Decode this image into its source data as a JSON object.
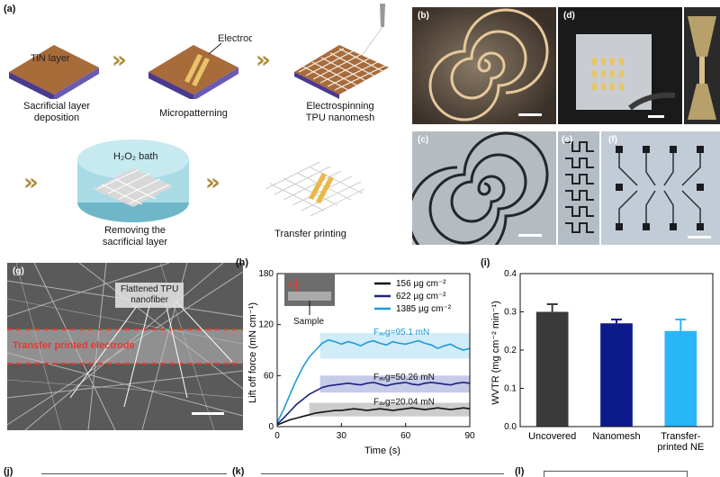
{
  "panel_a": {
    "label": "(a)",
    "steps": [
      {
        "name": "sacrificial-layer-deposition",
        "inner_label": "TiN layer",
        "caption": [
          "Sacrificial layer",
          "deposition"
        ]
      },
      {
        "name": "micropatterning",
        "inner_label": "Electrode",
        "caption": [
          "Micropatterning"
        ]
      },
      {
        "name": "electrospinning",
        "caption": [
          "Electrospinning",
          "TPU nanomesh"
        ]
      },
      {
        "name": "removing-sacrificial-layer",
        "inner_label": "H₂O₂ bath",
        "caption": [
          "Removing the",
          "sacrificial layer"
        ]
      },
      {
        "name": "transfer-printing",
        "caption": [
          "Transfer printing"
        ]
      }
    ],
    "arrow_glyph": "»"
  },
  "photo_labels": {
    "b": "(b)",
    "c": "(c)",
    "d": "(d)",
    "e": "(e)",
    "f": "(f)",
    "g": "(g)"
  },
  "panel_g": {
    "callout": [
      "Flattened TPU",
      "nanofiber"
    ],
    "electrode_label": "Transfer printed electrode"
  },
  "chart_data": [
    {
      "type": "line",
      "panel": "(h)",
      "xlabel": "Time (s)",
      "ylabel": "Lift off force (mN cm⁻¹)",
      "xlim": [
        0,
        90
      ],
      "ylim": [
        0,
        180
      ],
      "xticks": [
        0,
        30,
        60,
        90
      ],
      "yticks": [
        0,
        60,
        120,
        180
      ],
      "inset_labels": {
        "force": "F↑",
        "sample": "Sample"
      },
      "series": [
        {
          "name": "156 µg cm⁻²",
          "color": "#111111",
          "x": [
            0,
            3,
            6,
            9,
            12,
            15,
            18,
            21,
            24,
            27,
            30,
            33,
            36,
            39,
            42,
            45,
            48,
            51,
            54,
            57,
            60,
            63,
            66,
            69,
            72,
            75,
            78,
            81,
            84,
            87,
            90
          ],
          "y": [
            2,
            5,
            8,
            10,
            12,
            14,
            16,
            17,
            18,
            19,
            19,
            20,
            21,
            20,
            19,
            20,
            21,
            20,
            19,
            20,
            21,
            22,
            21,
            20,
            21,
            22,
            21,
            20,
            21,
            22,
            21
          ],
          "annotation": "Fₐᵥg=20.04 mN"
        },
        {
          "name": "622 µg cm⁻²",
          "color": "#1a237e",
          "x": [
            0,
            3,
            6,
            9,
            12,
            15,
            18,
            21,
            24,
            27,
            30,
            33,
            36,
            39,
            42,
            45,
            48,
            51,
            54,
            57,
            60,
            63,
            66,
            69,
            72,
            75,
            78,
            81,
            84,
            87,
            90
          ],
          "y": [
            3,
            10,
            18,
            26,
            32,
            38,
            42,
            46,
            48,
            49,
            50,
            51,
            50,
            49,
            51,
            52,
            50,
            48,
            50,
            51,
            52,
            50,
            49,
            51,
            52,
            51,
            50,
            49,
            51,
            52,
            51
          ],
          "annotation": "Fₐᵥg=50.26 mN"
        },
        {
          "name": "1385 µg cm⁻²",
          "color": "#1e9ad6",
          "x": [
            0,
            3,
            6,
            9,
            12,
            15,
            18,
            21,
            24,
            27,
            30,
            33,
            36,
            39,
            42,
            45,
            48,
            51,
            54,
            57,
            60,
            63,
            66,
            69,
            72,
            75,
            78,
            81,
            84,
            87,
            90
          ],
          "y": [
            5,
            20,
            38,
            55,
            70,
            82,
            90,
            98,
            102,
            100,
            97,
            100,
            98,
            95,
            99,
            101,
            98,
            96,
            100,
            98,
            97,
            99,
            101,
            98,
            96,
            92,
            95,
            97,
            93,
            90,
            92
          ],
          "annotation": "Fₐᵥg=95.1 mN"
        }
      ],
      "average_bands": [
        {
          "series": "156 µg cm⁻²",
          "x": [
            15,
            90
          ],
          "y": [
            12,
            28
          ],
          "color": "#aaaaaa"
        },
        {
          "series": "622 µg cm⁻²",
          "x": [
            20,
            90
          ],
          "y": [
            40,
            60
          ],
          "color": "#9fa8da"
        },
        {
          "series": "1385 µg cm⁻²",
          "x": [
            20,
            90
          ],
          "y": [
            80,
            110
          ],
          "color": "#b3e0f5"
        }
      ]
    },
    {
      "type": "bar",
      "panel": "(i)",
      "ylabel": "WVTR (mg cm⁻² min⁻¹)",
      "ylim": [
        0,
        0.4
      ],
      "yticks": [
        0.0,
        0.1,
        0.2,
        0.3,
        0.4
      ],
      "categories": [
        [
          "Uncovered"
        ],
        [
          "Nanomesh"
        ],
        [
          "Transfer-",
          "printed NE"
        ]
      ],
      "values": [
        0.3,
        0.27,
        0.25
      ],
      "errors": [
        0.02,
        0.01,
        0.03
      ],
      "colors": [
        "#3a3a3a",
        "#0d1a8a",
        "#29b6f6"
      ]
    }
  ],
  "bottom_panels": {
    "j": "(j)",
    "k": "(k)",
    "l": "(l)"
  }
}
